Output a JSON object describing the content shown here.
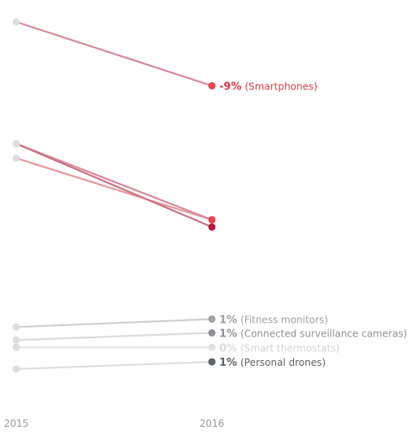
{
  "chart_data": {
    "type": "line",
    "x": [
      "2015",
      "2016"
    ],
    "series": [
      {
        "name": "Smartphones",
        "values": [
          -0.2,
          -9
        ],
        "label_pct": "-9%",
        "line_color": "#d98899",
        "dot_color": "#e8424f",
        "start_color": "#dddddd",
        "pct_color": "#e03a47",
        "name_color": "#e03a47"
      },
      {
        "name": "",
        "values": [
          -19,
          -27.5
        ],
        "line_color": "#e9969c",
        "dot_color": "#e8424f",
        "start_color": "#dddddd"
      },
      {
        "name": "",
        "values": [
          -17,
          -27.5
        ],
        "line_color": "#d98899",
        "dot_color": "#e8424f",
        "start_color": "#dddddd"
      },
      {
        "name": "",
        "values": [
          -17,
          -28.5
        ],
        "line_color": "#cd6f84",
        "dot_color": "#b5193a",
        "start_color": "#dddddd"
      },
      {
        "name": "Fitness monitors",
        "values": [
          -42.3,
          -41.2
        ],
        "label_pct": "1%",
        "line_color": "#cfcfcf",
        "dot_color": "#a0a3a6",
        "start_color": "#dddddd",
        "pct_color": "#9da0a3",
        "name_color": "#9da0a3"
      },
      {
        "name": "Connected surveillance cameras",
        "values": [
          -44.1,
          -43.1
        ],
        "label_pct": "1%",
        "line_color": "#dcdcdc",
        "dot_color": "#8e9297",
        "start_color": "#dddddd",
        "pct_color": "#8e9297",
        "name_color": "#8e9297"
      },
      {
        "name": "Smart thermostats",
        "values": [
          -45.1,
          -45.1
        ],
        "label_pct": "0%",
        "line_color": "#e6e6e6",
        "dot_color": "#e1e1e1",
        "start_color": "#dddddd",
        "pct_color": "#dcdcdc",
        "name_color": "#d3d3d3"
      },
      {
        "name": "Personal drones",
        "values": [
          -48.1,
          -47.1
        ],
        "label_pct": "1%",
        "line_color": "#dedede",
        "dot_color": "#5d6368",
        "start_color": "#dddddd",
        "pct_color": "#5d6368",
        "name_color": "#5d6368"
      }
    ],
    "ylim": [
      -55,
      3
    ],
    "grid": false,
    "legend": "direct labels at line ends"
  }
}
